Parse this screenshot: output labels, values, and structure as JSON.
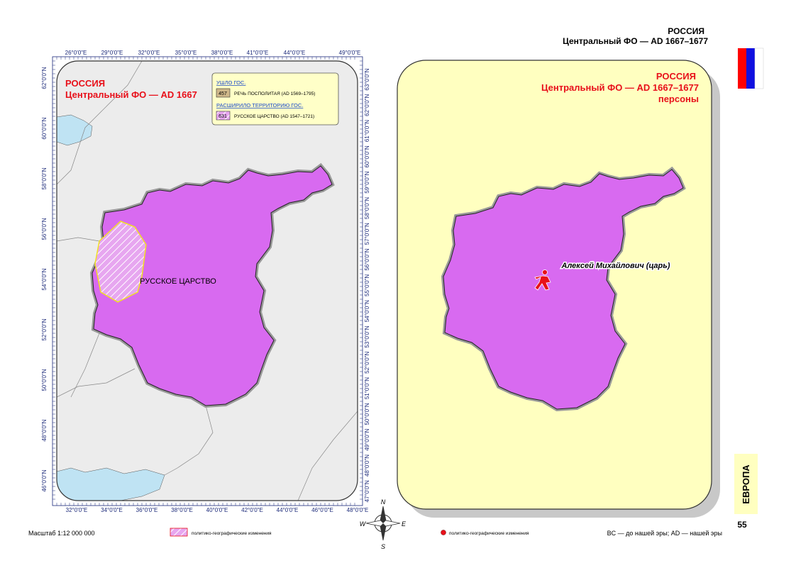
{
  "header": {
    "country": "РОССИЯ",
    "subtitle": "Центральный ФО — AD 1667–1677"
  },
  "left_map": {
    "title": "РОССИЯ",
    "subtitle": "Центральный ФО — AD 1667",
    "legend": {
      "lost_heading": "УШЛО ГОС.",
      "lost": [
        {
          "code": "457",
          "name": "РЕЧЬ ПОСПОЛИТАЯ (AD 1569–1795)"
        }
      ],
      "gained_heading": "РАСШИРИЛО ТЕРРИТОРИЮ ГОС.",
      "gained": [
        {
          "code": "631",
          "name": "РУССКОЕ ЦАРСТВО (AD 1547–1721)"
        }
      ]
    },
    "region_label": "РУССКОЕ ЦАРСТВО",
    "top_axis": [
      "26°0'0\"E",
      "29°0'0\"E",
      "32°0'0\"E",
      "35°0'0\"E",
      "38°0'0\"E",
      "41°0'0\"E",
      "44°0'0\"E",
      "49°0'0\"E"
    ],
    "bottom_axis": [
      "32°0'0\"E",
      "34°0'0\"E",
      "36°0'0\"E",
      "38°0'0\"E",
      "40°0'0\"E",
      "42°0'0\"E",
      "44°0'0\"E",
      "46°0'0\"E",
      "48°0'0\"E"
    ],
    "left_axis": [
      "62°0'0\"N",
      "60°0'0\"N",
      "58°0'0\"N",
      "56°0'0\"N",
      "54°0'0\"N",
      "52°0'0\"N",
      "50°0'0\"N",
      "48°0'0\"N",
      "46°0'0\"N"
    ],
    "right_axis": [
      "63°0'0\"N",
      "62°0'0\"N",
      "61°0'0\"N",
      "60°0'0\"N",
      "59°0'0\"N",
      "58°0'0\"N",
      "57°0'0\"N",
      "56°0'0\"N",
      "55°0'0\"N",
      "54°0'0\"N",
      "53°0'0\"N",
      "52°0'0\"N",
      "51°0'0\"N",
      "50°0'0\"N",
      "49°0'0\"N",
      "48°0'0\"N",
      "47°0'0\"N"
    ]
  },
  "right_map": {
    "title": "РОССИЯ",
    "subtitle": "Центральный ФО — AD 1667–1677",
    "theme": "персоны",
    "person": "Алексей Михайлович (царь)"
  },
  "compass": {
    "n": "N",
    "e": "E",
    "s": "S",
    "w": "W"
  },
  "footer": {
    "scale": "Масштаб 1:12 000 000",
    "left_legend": "политико-географические изменения",
    "right_legend": "политико-географические изменения",
    "era_note": "BC — до нашей эры; AD — нашей эры",
    "section": "ЕВРОПА",
    "page": "55"
  }
}
